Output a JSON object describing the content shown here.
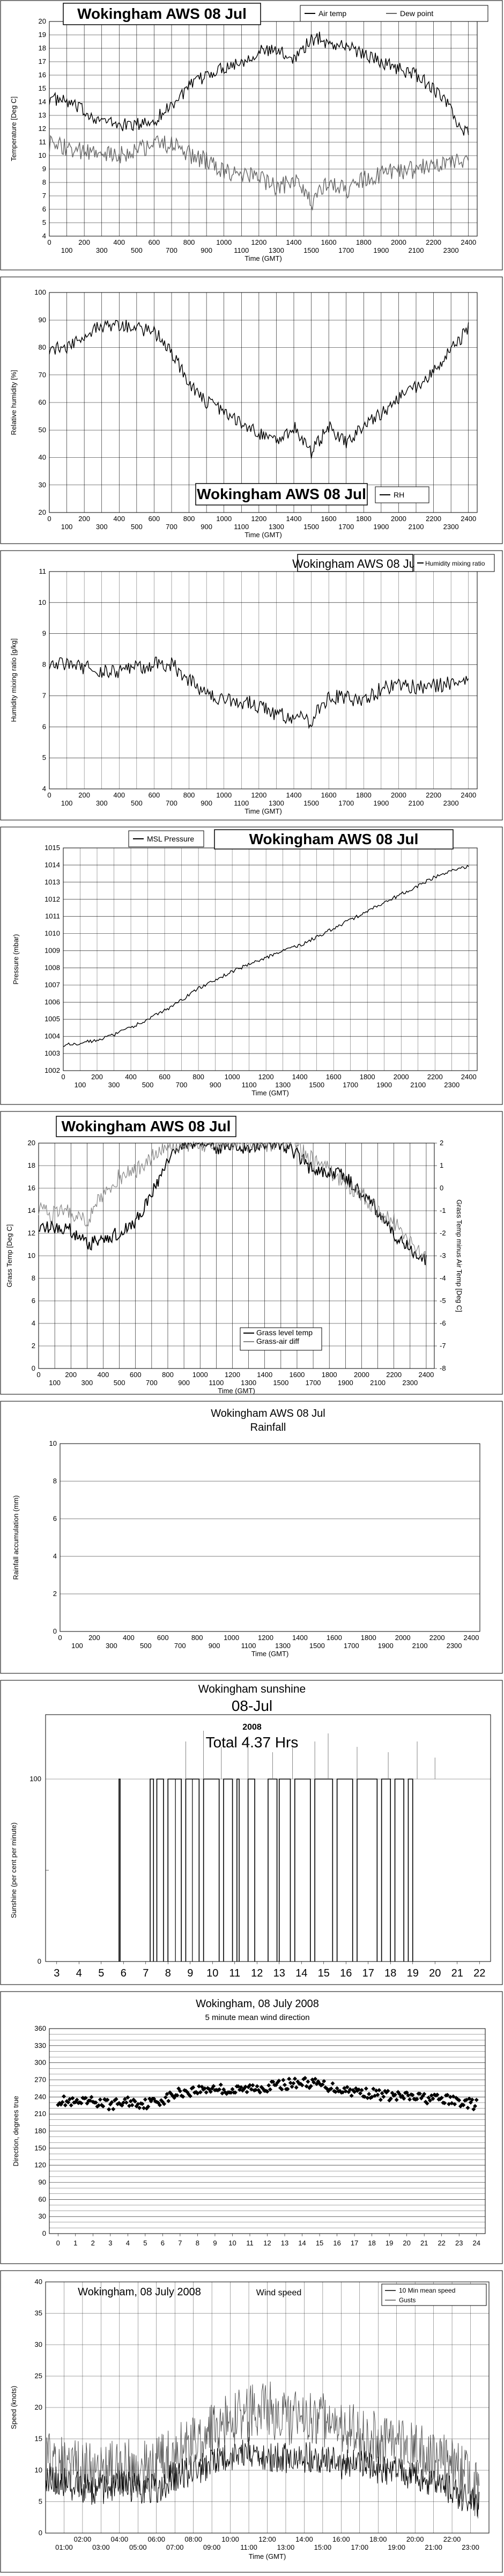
{
  "chart_data": [
    {
      "type": "line",
      "title": "Wokingham AWS 08 Jul",
      "xlabel": "Time (GMT)",
      "ylabel": "Temperature [Deg C]",
      "xlim": [
        0,
        2450
      ],
      "ylim": [
        4,
        20
      ],
      "x_ticks_top": [
        "0",
        "200",
        "400",
        "600",
        "800",
        "1000",
        "1200",
        "1400",
        "1600",
        "1800",
        "2000",
        "2200",
        "2400"
      ],
      "x_ticks_bottom": [
        "100",
        "300",
        "500",
        "700",
        "900",
        "1100",
        "1300",
        "1500",
        "1700",
        "1900",
        "2100",
        "2300"
      ],
      "y_ticks": [
        "4",
        "5",
        "6",
        "7",
        "8",
        "9",
        "10",
        "11",
        "12",
        "13",
        "14",
        "15",
        "16",
        "17",
        "18",
        "19",
        "20"
      ],
      "series": [
        {
          "name": "Air temp",
          "color": "#000000",
          "x": [
            0,
            100,
            200,
            300,
            400,
            500,
            600,
            700,
            800,
            900,
            1000,
            1100,
            1200,
            1300,
            1400,
            1500,
            1550,
            1600,
            1700,
            1800,
            1900,
            2000,
            2100,
            2200,
            2300,
            2350,
            2400
          ],
          "y": [
            14.3,
            14.0,
            13.3,
            12.6,
            12.3,
            12.3,
            12.6,
            13.8,
            15.1,
            16.0,
            16.6,
            17.0,
            17.8,
            17.8,
            17.3,
            18.6,
            18.8,
            18.3,
            18.2,
            17.6,
            17.0,
            16.5,
            16.0,
            15.0,
            13.5,
            12.0,
            11.8
          ]
        },
        {
          "name": "Dew point",
          "color": "#666666",
          "x": [
            0,
            100,
            200,
            300,
            400,
            500,
            600,
            700,
            800,
            900,
            1000,
            1100,
            1200,
            1300,
            1400,
            1500,
            1600,
            1700,
            1800,
            1900,
            2000,
            2100,
            2200,
            2300,
            2400
          ],
          "y": [
            10.8,
            10.6,
            10.2,
            10.0,
            10.0,
            10.4,
            10.9,
            10.8,
            10.1,
            9.6,
            8.8,
            8.5,
            8.4,
            7.5,
            8.3,
            6.5,
            8.0,
            7.5,
            8.2,
            8.6,
            8.8,
            9.0,
            9.3,
            9.6,
            9.8
          ]
        }
      ]
    },
    {
      "type": "line",
      "title": "Wokingham AWS 08 Jul",
      "xlabel": "Time (GMT)",
      "ylabel": "Relative humidity [%]",
      "xlim": [
        0,
        2450
      ],
      "ylim": [
        20,
        100
      ],
      "x_ticks_top": [
        "0",
        "200",
        "400",
        "600",
        "800",
        "1000",
        "1200",
        "1400",
        "1600",
        "1800",
        "2000",
        "2200",
        "2400"
      ],
      "x_ticks_bottom": [
        "100",
        "300",
        "500",
        "700",
        "900",
        "1100",
        "1300",
        "1500",
        "1700",
        "1900",
        "2100",
        "2300"
      ],
      "y_ticks": [
        "20",
        "30",
        "40",
        "50",
        "60",
        "70",
        "80",
        "90",
        "100"
      ],
      "series": [
        {
          "name": "RH",
          "color": "#000000",
          "x": [
            0,
            100,
            200,
            300,
            400,
            500,
            600,
            700,
            800,
            900,
            1000,
            1100,
            1200,
            1300,
            1400,
            1500,
            1600,
            1700,
            1800,
            1900,
            2000,
            2100,
            2200,
            2300,
            2400
          ],
          "y": [
            80,
            79,
            85,
            88,
            88,
            87,
            86,
            78,
            67,
            60,
            57,
            53,
            49,
            46,
            51,
            42,
            51,
            45,
            52,
            56,
            62,
            66,
            71,
            79,
            87
          ]
        }
      ]
    },
    {
      "type": "line",
      "title": "Wokingham AWS 08 Jul",
      "xlabel": "Time (GMT)",
      "ylabel": "Humidity mixing ratio [g/kg]",
      "xlim": [
        0,
        2450
      ],
      "ylim": [
        4,
        11
      ],
      "x_ticks_top": [
        "0",
        "200",
        "400",
        "600",
        "800",
        "1000",
        "1200",
        "1400",
        "1600",
        "1800",
        "2000",
        "2200",
        "2400"
      ],
      "x_ticks_bottom": [
        "100",
        "300",
        "500",
        "700",
        "900",
        "1100",
        "1300",
        "1500",
        "1700",
        "1900",
        "2100",
        "2300"
      ],
      "y_ticks": [
        "4",
        "5",
        "6",
        "7",
        "8",
        "9",
        "10",
        "11"
      ],
      "series": [
        {
          "name": "Humidity mixing ratio",
          "color": "#000000",
          "x": [
            0,
            100,
            200,
            300,
            400,
            500,
            600,
            700,
            800,
            900,
            1000,
            1100,
            1200,
            1300,
            1400,
            1500,
            1600,
            1700,
            1800,
            1900,
            2000,
            2100,
            2200,
            2300,
            2400
          ],
          "y": [
            8.1,
            8.0,
            7.9,
            7.8,
            7.8,
            7.9,
            8.0,
            8.0,
            7.5,
            7.1,
            6.9,
            6.8,
            6.7,
            6.4,
            6.3,
            6.2,
            7.0,
            6.9,
            6.9,
            7.2,
            7.4,
            7.3,
            7.3,
            7.4,
            7.5
          ]
        }
      ]
    },
    {
      "type": "line",
      "title": "Wokingham AWS 08 Jul",
      "xlabel": "Time (GMT)",
      "ylabel": "Pressure (mbar)",
      "xlim": [
        0,
        2450
      ],
      "ylim": [
        1002,
        1015
      ],
      "x_ticks_top": [
        "0",
        "200",
        "400",
        "600",
        "800",
        "1000",
        "1200",
        "1400",
        "1600",
        "1800",
        "2000",
        "2200",
        "2400"
      ],
      "x_ticks_bottom": [
        "100",
        "300",
        "500",
        "700",
        "900",
        "1100",
        "1300",
        "1500",
        "1700",
        "1900",
        "2100",
        "2300"
      ],
      "y_ticks": [
        "1002",
        "1003",
        "1004",
        "1005",
        "1006",
        "1007",
        "1008",
        "1009",
        "1010",
        "1011",
        "1012",
        "1013",
        "1014",
        "1015"
      ],
      "series": [
        {
          "name": "MSL Pressure",
          "color": "#000000",
          "x": [
            0,
            100,
            200,
            300,
            400,
            500,
            600,
            700,
            800,
            900,
            1000,
            1100,
            1200,
            1300,
            1400,
            1500,
            1600,
            1700,
            1800,
            1900,
            2000,
            2100,
            2200,
            2300,
            2400
          ],
          "y": [
            1003.5,
            1003.6,
            1003.8,
            1004.1,
            1004.5,
            1005.0,
            1005.5,
            1006.1,
            1006.8,
            1007.3,
            1007.8,
            1008.2,
            1008.6,
            1009.0,
            1009.3,
            1009.8,
            1010.3,
            1010.8,
            1011.3,
            1011.8,
            1012.3,
            1012.8,
            1013.3,
            1013.7,
            1013.9
          ]
        }
      ]
    },
    {
      "type": "line",
      "title": "Wokingham AWS 08 Jul",
      "xlabel": "Time (GMT)",
      "ylabel": "Grass Temp [Deg C]",
      "ylabel_right": "Grass Temp minus Air Temp [Deg C]",
      "xlim": [
        0,
        2450
      ],
      "ylim": [
        0,
        20
      ],
      "ylim_right": [
        -8,
        2
      ],
      "x_ticks_top": [
        "0",
        "200",
        "400",
        "600",
        "800",
        "1000",
        "1200",
        "1400",
        "1600",
        "1800",
        "2000",
        "2200",
        "2400"
      ],
      "x_ticks_bottom": [
        "100",
        "300",
        "500",
        "700",
        "900",
        "1100",
        "1300",
        "1500",
        "1700",
        "1900",
        "2100",
        "2300"
      ],
      "y_ticks": [
        "0",
        "2",
        "4",
        "6",
        "8",
        "10",
        "12",
        "14",
        "16",
        "18",
        "20"
      ],
      "y_ticks_right": [
        "-8",
        "-7",
        "-6",
        "-5",
        "-4",
        "-3",
        "-2",
        "-1",
        "0",
        "1",
        "2"
      ],
      "series": [
        {
          "name": "Grass level temp",
          "color": "#000000",
          "axis": "left",
          "x": [
            0,
            100,
            200,
            300,
            400,
            500,
            600,
            700,
            800,
            900,
            1000,
            1100,
            1200,
            1300,
            1400,
            1500,
            1600,
            1700,
            1800,
            1900,
            2000,
            2100,
            2200,
            2300,
            2400
          ],
          "y": [
            12.8,
            12.5,
            12.3,
            11.0,
            11.5,
            12.0,
            13.0,
            15.5,
            18.5,
            20.0,
            20.0,
            19.5,
            20.0,
            19.5,
            20.0,
            20.0,
            19.0,
            17.5,
            17.5,
            17.0,
            15.5,
            14.0,
            12.0,
            10.5,
            9.5
          ]
        },
        {
          "name": "Grass-air diff",
          "color": "#888888",
          "axis": "right",
          "x": [
            0,
            100,
            200,
            300,
            400,
            500,
            600,
            700,
            800,
            900,
            1000,
            1100,
            1200,
            1300,
            1400,
            1500,
            1600,
            1700,
            1800,
            1900,
            2000,
            2100,
            2200,
            2300,
            2400
          ],
          "y": [
            -0.8,
            -1.2,
            -1.0,
            -1.4,
            -0.3,
            0.5,
            0.8,
            1.3,
            2.0,
            2.0,
            2.0,
            2.0,
            2.0,
            2.0,
            2.0,
            2.0,
            1.8,
            1.2,
            0.8,
            0.3,
            -0.3,
            -1.0,
            -1.5,
            -2.5,
            -3.2
          ]
        }
      ]
    },
    {
      "type": "line",
      "title": "Wokingham AWS 08 Jul",
      "subtitle": "Rainfall",
      "xlabel": "Time (GMT)",
      "ylabel": "Rainfall accumulation (mm)",
      "xlim": [
        0,
        2450
      ],
      "ylim": [
        0,
        10
      ],
      "x_ticks_top": [
        "0",
        "200",
        "400",
        "600",
        "800",
        "1000",
        "1200",
        "1400",
        "1600",
        "1800",
        "2000",
        "2200",
        "2400"
      ],
      "x_ticks_bottom": [
        "100",
        "300",
        "500",
        "700",
        "900",
        "1100",
        "1300",
        "1500",
        "1700",
        "1900",
        "2100",
        "2300"
      ],
      "y_ticks": [
        "0",
        "2",
        "4",
        "6",
        "8",
        "10"
      ],
      "series": []
    },
    {
      "type": "bar",
      "title": "Wokingham sunshine",
      "subtitle": "08-Jul",
      "subtitle2": "2008",
      "total": "Total 4.37 Hrs",
      "ylabel": "Sunshine (per cent per minute)",
      "xlim": [
        2.5,
        22.5
      ],
      "ylim": [
        0,
        100
      ],
      "x_ticks": [
        "3",
        "4",
        "5",
        "6",
        "7",
        "8",
        "9",
        "10",
        "11",
        "12",
        "13",
        "14",
        "15",
        "16",
        "17",
        "18",
        "19",
        "20",
        "21",
        "22"
      ],
      "y_ticks": [
        "0",
        "100"
      ],
      "sunny_intervals_hours": [
        [
          5.8,
          5.85
        ],
        [
          7.2,
          7.35
        ],
        [
          7.5,
          7.8
        ],
        [
          8.0,
          8.6
        ],
        [
          8.8,
          9.4
        ],
        [
          9.6,
          10.3
        ],
        [
          10.5,
          10.9
        ],
        [
          11.1,
          11.2
        ],
        [
          11.6,
          11.9
        ],
        [
          12.5,
          12.9
        ],
        [
          13.0,
          13.5
        ],
        [
          13.7,
          14.4
        ],
        [
          14.6,
          15.4
        ],
        [
          15.6,
          16.3
        ],
        [
          16.5,
          17.4
        ],
        [
          17.6,
          18.0
        ],
        [
          18.2,
          18.6
        ],
        [
          18.8,
          19.0
        ]
      ]
    },
    {
      "type": "scatter",
      "title": "Wokingham, 08 July 2008",
      "subtitle": "5 minute mean wind direction",
      "xlabel": "",
      "ylabel": "Direction, degrees true",
      "xlim": [
        -0.5,
        24.5
      ],
      "ylim": [
        0,
        360
      ],
      "x_ticks": [
        "0",
        "1",
        "2",
        "3",
        "4",
        "5",
        "6",
        "7",
        "8",
        "9",
        "10",
        "11",
        "12",
        "13",
        "14",
        "15",
        "16",
        "17",
        "18",
        "19",
        "20",
        "21",
        "22",
        "23",
        "24"
      ],
      "y_ticks": [
        "0",
        "30",
        "60",
        "90",
        "120",
        "150",
        "180",
        "210",
        "240",
        "270",
        "300",
        "330",
        "360"
      ],
      "series": [
        {
          "name": "",
          "color": "#000000",
          "x": [
            0,
            1,
            2,
            3,
            4,
            5,
            6,
            7,
            8,
            9,
            10,
            11,
            12,
            13,
            14,
            15,
            16,
            17,
            18,
            19,
            20,
            21,
            22,
            23,
            24
          ],
          "y": [
            235,
            228,
            232,
            226,
            232,
            228,
            235,
            248,
            252,
            256,
            250,
            255,
            258,
            262,
            266,
            262,
            255,
            250,
            246,
            242,
            240,
            238,
            236,
            232,
            226
          ]
        }
      ]
    },
    {
      "type": "line",
      "title": "Wokingham,  08 July 2008",
      "subtitle": "Wind speed",
      "xlabel": "Time (GMT)",
      "ylabel": "Speed (knots)",
      "xlim": [
        0,
        24
      ],
      "ylim": [
        0,
        40
      ],
      "x_ticks_top": [
        "02:00",
        "04:00",
        "06:00",
        "08:00",
        "10:00",
        "12:00",
        "14:00",
        "16:00",
        "18:00",
        "20:00",
        "22:00"
      ],
      "x_ticks_bottom": [
        "01:00",
        "03:00",
        "05:00",
        "07:00",
        "09:00",
        "11:00",
        "13:00",
        "15:00",
        "17:00",
        "19:00",
        "21:00",
        "23:00"
      ],
      "y_ticks": [
        "0",
        "5",
        "10",
        "15",
        "20",
        "25",
        "30",
        "35",
        "40"
      ],
      "series": [
        {
          "name": "10 Min mean speed",
          "color": "#000000",
          "x": [
            0,
            1,
            2,
            3,
            4,
            5,
            6,
            7,
            8,
            9,
            10,
            11,
            12,
            13,
            14,
            15,
            16,
            17,
            18,
            19,
            20,
            21,
            22,
            23,
            23.5
          ],
          "y": [
            9,
            8,
            7,
            7,
            8,
            7,
            7,
            9,
            10,
            11,
            12,
            13,
            12,
            12,
            12,
            12,
            11,
            11,
            10,
            10,
            9,
            8,
            7,
            5,
            4
          ]
        },
        {
          "name": "Gusts",
          "color": "#555555",
          "x": [
            0,
            1,
            2,
            3,
            4,
            5,
            6,
            7,
            8,
            9,
            10,
            11,
            12,
            13,
            14,
            15,
            16,
            17,
            18,
            19,
            20,
            21,
            22,
            23,
            23.5
          ],
          "y": [
            12,
            11,
            10,
            10,
            11,
            10,
            11,
            13,
            15,
            16,
            18,
            19,
            20,
            18,
            19,
            18,
            17,
            16,
            15,
            14,
            13,
            12,
            11,
            8,
            6
          ]
        }
      ]
    }
  ]
}
